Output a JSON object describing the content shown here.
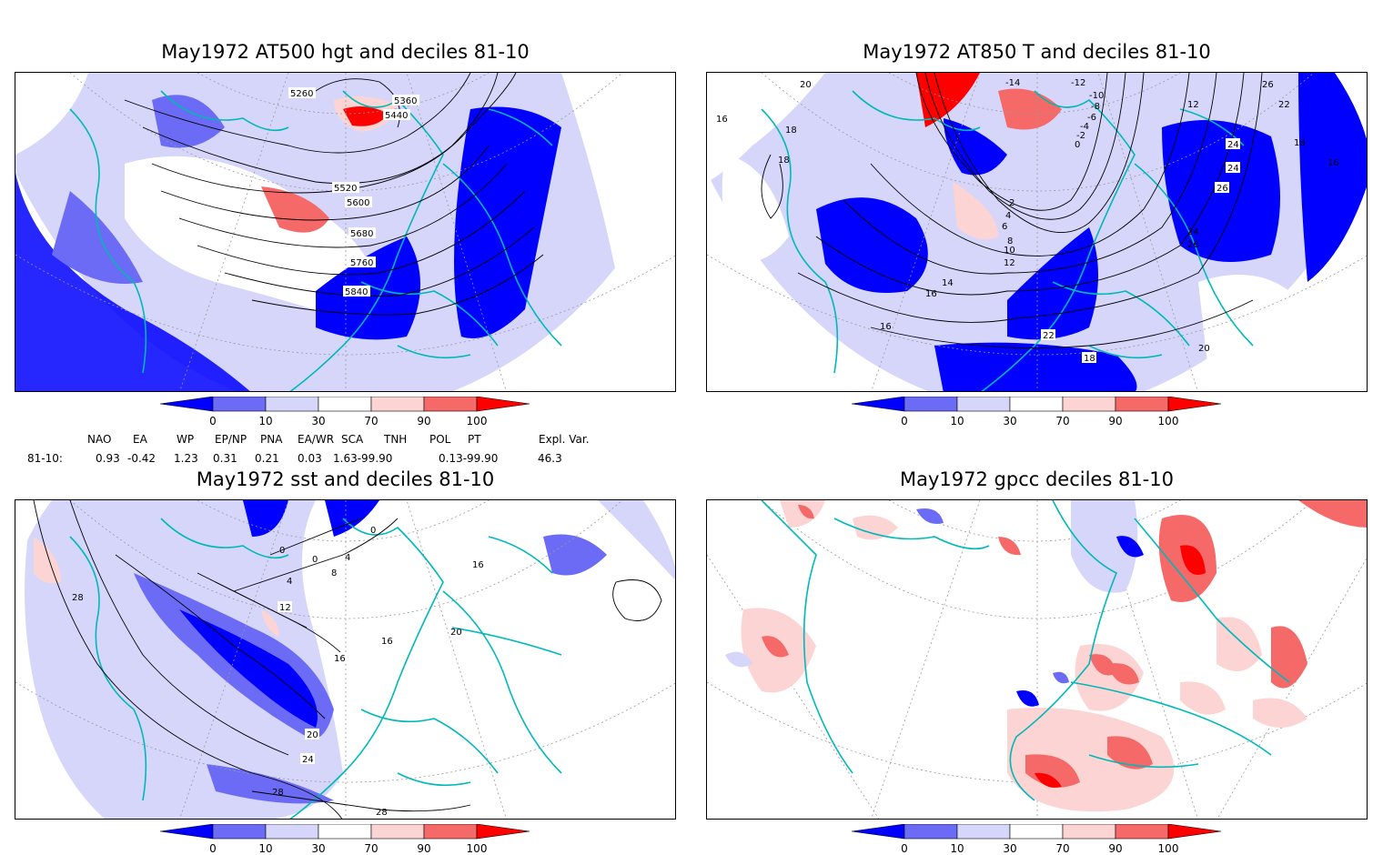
{
  "panels": [
    {
      "id": "p1",
      "title": "May1972 AT500 hgt and deciles 81-10",
      "contour_labels": [
        "5260",
        "5360",
        "5440",
        "5520",
        "5600",
        "5680",
        "5760",
        "5840"
      ]
    },
    {
      "id": "p2",
      "title": "May1972 AT850 T and deciles 81-10",
      "contour_labels": [
        "20",
        "16",
        "18",
        "18",
        "-14",
        "-12",
        "-10",
        "-8",
        "-6",
        "-4",
        "-2",
        "0",
        "2",
        "4",
        "6",
        "8",
        "10",
        "12",
        "14",
        "16",
        "16",
        "12",
        "22",
        "26",
        "24",
        "24",
        "26",
        "18",
        "16",
        "24",
        "26",
        "22",
        "18",
        "20"
      ]
    },
    {
      "id": "p3",
      "title": "May1972 sst and deciles 81-10",
      "contour_labels": [
        "0",
        "0",
        "0",
        "4",
        "8",
        "4",
        "12",
        "16",
        "16",
        "16",
        "20",
        "20",
        "24",
        "28",
        "28",
        "28"
      ]
    },
    {
      "id": "p4",
      "title": "May1972 gpcc deciles 81-10",
      "contour_labels": []
    }
  ],
  "colorbar": {
    "ticks": [
      "0",
      "10",
      "30",
      "70",
      "90",
      "100"
    ],
    "colors": [
      "#0000ff",
      "#6b6bf5",
      "#d6d6fb",
      "#ffffff",
      "#fcd4d4",
      "#f56969",
      "#ff0000"
    ]
  },
  "teleconnections": {
    "headers": [
      "NAO",
      "EA",
      "WP",
      "EP/NP",
      "PNA",
      "EA/WR",
      "SCA",
      "TNH",
      "POL",
      "PT",
      "Expl. Var."
    ],
    "row_label": "81-10:",
    "values": [
      "0.93",
      "-0.42",
      "1.23",
      "0.31",
      "0.21",
      "0.03",
      "1.63-99.90",
      "0.13-99.90",
      "46.3"
    ]
  }
}
